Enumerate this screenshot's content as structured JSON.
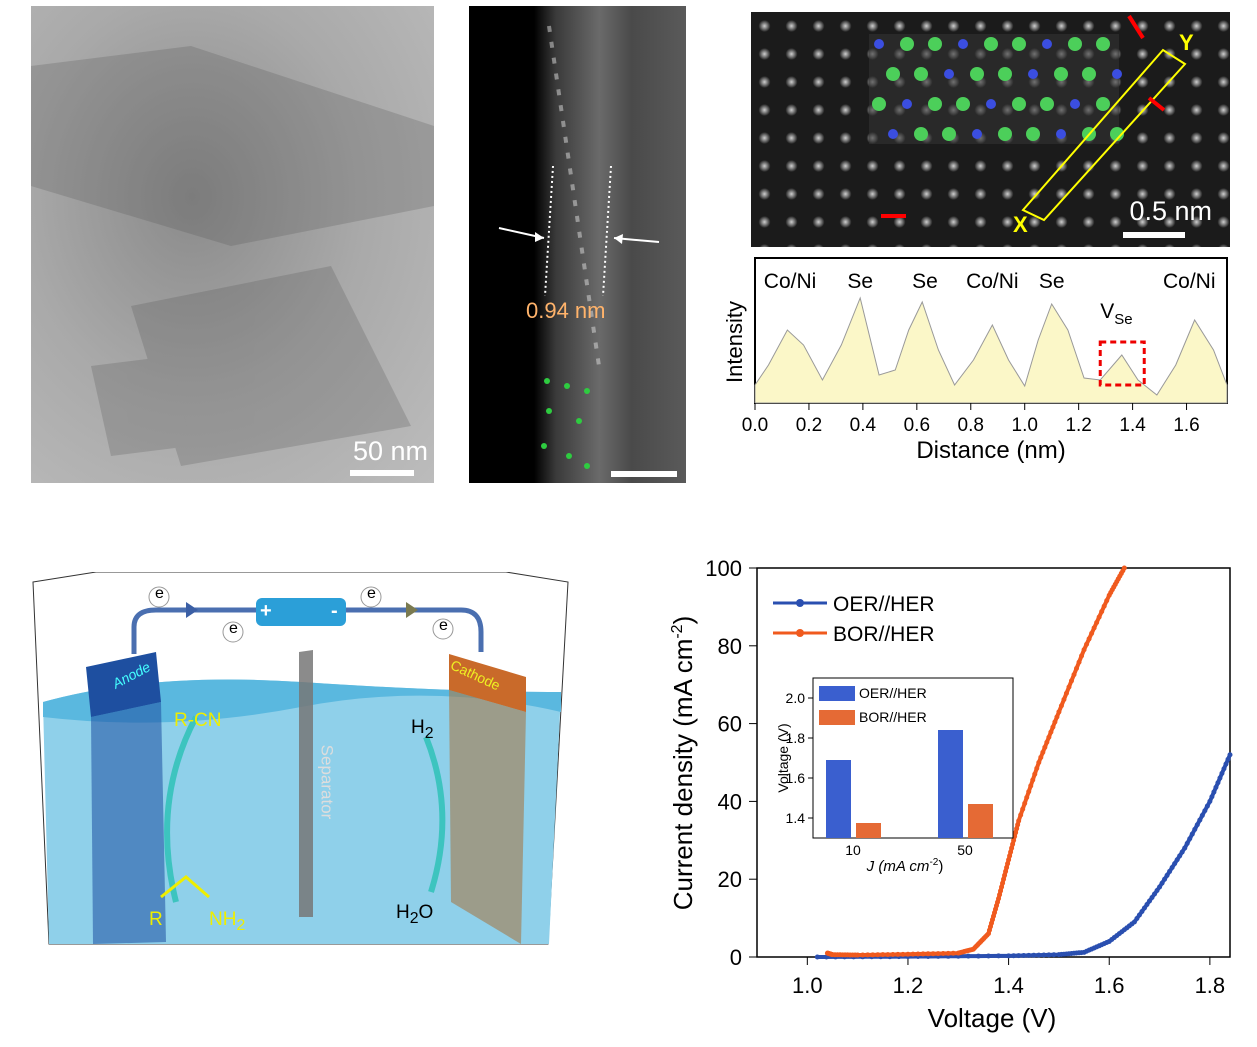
{
  "panel_a": {
    "scale_bar": "50 nm"
  },
  "panel_b": {
    "spacing": "0.94 nm"
  },
  "panel_c": {
    "scale_bar": "0.5 nm",
    "line_start": "X",
    "line_end": "Y"
  },
  "panel_d": {
    "anode": "Anode",
    "cathode": "Cathode",
    "separator": "Separator",
    "electron": "e",
    "plus": "+",
    "minus": "-",
    "product_anode": "R-CN",
    "reactant_r": "R",
    "reactant_nh": "NH",
    "sub2": "2",
    "product_cathode": "H",
    "reactant_cathode": "H",
    "reactant_cathode_o": "O"
  },
  "chart_data": [
    {
      "type": "area",
      "title": "",
      "xlabel": "Distance (nm)",
      "ylabel": "Intensity",
      "xlim": [
        0,
        1.75
      ],
      "xticks": [
        "0.0",
        "0.2",
        "0.4",
        "0.6",
        "0.8",
        "1.0",
        "1.2",
        "1.4",
        "1.6"
      ],
      "annotations": [
        "Co/Ni",
        "Se",
        "Se",
        "Co/Ni",
        "Se",
        "V",
        "Se",
        "Co/Ni"
      ],
      "x": [
        0,
        0.05,
        0.12,
        0.18,
        0.25,
        0.32,
        0.39,
        0.46,
        0.52,
        0.57,
        0.62,
        0.68,
        0.74,
        0.81,
        0.88,
        0.94,
        1.0,
        1.05,
        1.1,
        1.16,
        1.22,
        1.28,
        1.36,
        1.42,
        1.49,
        1.56,
        1.63,
        1.7,
        1.75
      ],
      "values": [
        0.05,
        0.25,
        0.6,
        0.45,
        0.1,
        0.45,
        0.92,
        0.15,
        0.2,
        0.6,
        0.88,
        0.4,
        0.05,
        0.3,
        0.65,
        0.3,
        0.04,
        0.5,
        0.86,
        0.6,
        0.12,
        0.1,
        0.35,
        0.1,
        -0.05,
        0.25,
        0.7,
        0.4,
        0.05
      ]
    },
    {
      "type": "line",
      "xlabel": "Voltage (V)",
      "ylabel": "Current density (mA cm",
      "ylabel_sup": "-2",
      "ylabel_end": ")",
      "xlim": [
        0.9,
        1.84
      ],
      "ylim": [
        0,
        100
      ],
      "xticks": [
        "1.0",
        "1.2",
        "1.4",
        "1.6",
        "1.8"
      ],
      "yticks": [
        "0",
        "20",
        "40",
        "60",
        "80",
        "100"
      ],
      "legend": "top-left",
      "series": [
        {
          "name": "OER//HER",
          "color": "#2a4fb0",
          "x": [
            1.02,
            1.2,
            1.4,
            1.5,
            1.55,
            1.6,
            1.65,
            1.7,
            1.75,
            1.8,
            1.84
          ],
          "y": [
            0,
            0.1,
            0.3,
            0.6,
            1.2,
            4,
            9,
            18,
            28,
            40,
            52
          ]
        },
        {
          "name": "BOR//HER",
          "color": "#f05a1e",
          "x": [
            1.04,
            1.05,
            1.1,
            1.2,
            1.3,
            1.33,
            1.36,
            1.38,
            1.4,
            1.42,
            1.46,
            1.5,
            1.55,
            1.6,
            1.63
          ],
          "y": [
            1,
            0.6,
            0.5,
            0.7,
            1,
            2,
            6,
            15,
            25,
            35,
            50,
            63,
            79,
            93,
            100
          ]
        }
      ]
    },
    {
      "type": "bar",
      "xlabel": "J (mA cm",
      "xlabel_sup": "-2",
      "xlabel_end": ")",
      "ylabel": "Voltage (V)",
      "ylim": [
        1.3,
        2.1
      ],
      "categories": [
        "10",
        "50"
      ],
      "yticks": [
        "1.4",
        "1.6",
        "1.8",
        "2.0"
      ],
      "legend": "top-left",
      "series": [
        {
          "name": "OER//HER",
          "color": "#3a5fcf",
          "values": [
            1.69,
            1.84
          ]
        },
        {
          "name": "BOR//HER",
          "color": "#e56a35",
          "values": [
            1.375,
            1.47
          ]
        }
      ]
    }
  ]
}
